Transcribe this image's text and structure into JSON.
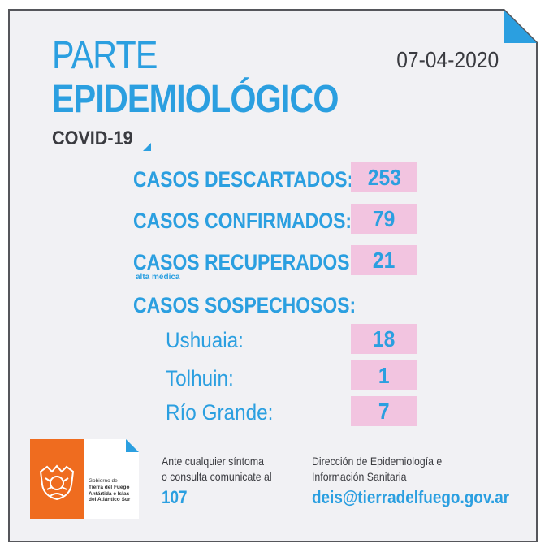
{
  "header": {
    "title_line1": "PARTE",
    "title_line2": "EPIDEMIOLÓGICO",
    "date": "07-04-2020",
    "subtitle": "COVID-19"
  },
  "stats": {
    "descartados": {
      "label": "CASOS DESCARTADOS:",
      "value": "253"
    },
    "confirmados": {
      "label": "CASOS CONFIRMADOS:",
      "value": "79"
    },
    "recuperados": {
      "label": "CASOS RECUPERADOS:",
      "note": "alta médica",
      "value": "21"
    },
    "sospechosos": {
      "label": "CASOS SOSPECHOSOS:",
      "cities": [
        {
          "name": "Ushuaia:",
          "value": "18"
        },
        {
          "name": "Tolhuin:",
          "value": "1"
        },
        {
          "name": "Río Grande:",
          "value": "7"
        }
      ]
    }
  },
  "footer": {
    "logo": {
      "line1": "Gobierno de",
      "line2": "Tierra del Fuego",
      "line3": "Antártida e Islas",
      "line4": "del Atlántico Sur"
    },
    "contact_text_line1": "Ante cualquier síntoma",
    "contact_text_line2": "o consulta comunicate al",
    "phone": "107",
    "dept_line1": "Dirección de Epidemiología e",
    "dept_line2": "Información Sanitaria",
    "email": "deis@tierradelfuego.gov.ar"
  },
  "colors": {
    "accent_blue": "#2b9fe0",
    "highlight_pink": "#f2c4e0",
    "logo_orange": "#ef6c1f",
    "text_dark": "#3a3b40",
    "background": "#f1f1f4"
  }
}
